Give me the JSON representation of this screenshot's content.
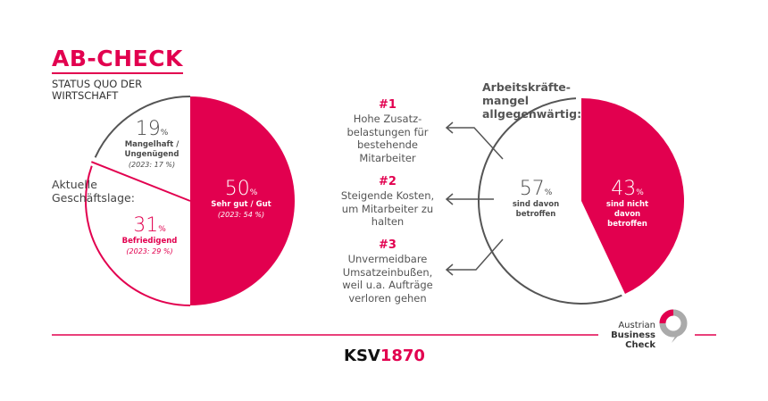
{
  "header": {
    "title": "AB-CHECK",
    "subtitle": "STATUS QUO DER WIRTSCHAFT"
  },
  "colors": {
    "accent": "#e2004f",
    "neutral": "#555555"
  },
  "chart_data": [
    {
      "type": "pie",
      "title": "Aktuelle Geschäftslage:",
      "slices": [
        {
          "label": "Sehr gut / Gut",
          "value": 50,
          "unit": "%",
          "previous": "(2023: 54 %)",
          "color": "#e2004f"
        },
        {
          "label": "Befriedigend",
          "value": 31,
          "unit": "%",
          "previous": "(2023: 29 %)",
          "color": "#ffffff"
        },
        {
          "label": "Mangelhaft / Ungenügend",
          "value": 19,
          "unit": "%",
          "previous": "(2023: 17 %)",
          "color": "#ffffff"
        }
      ]
    },
    {
      "type": "pie",
      "title": "Arbeitskräfte-mangel allgegenwärtig:",
      "slices": [
        {
          "label": "sind nicht davon betroffen",
          "value": 43,
          "unit": "%",
          "color": "#e2004f"
        },
        {
          "label": "sind davon betroffen",
          "value": 57,
          "unit": "%",
          "color": "#ffffff"
        }
      ]
    }
  ],
  "reasons": [
    {
      "rank": "#1",
      "text": "Hohe Zusatz-belastungen für bestehende Mitarbeiter"
    },
    {
      "rank": "#2",
      "text": "Steigende Kosten, um Mitarbeiter zu halten"
    },
    {
      "rank": "#3",
      "text": "Unvermeidbare Umsatzeinbußen, weil u.a. Aufträge verloren gehen"
    }
  ],
  "footer": {
    "logo_ksv": "KSV",
    "logo_ksv_num": "1870",
    "abc_line1": "Austrian",
    "abc_line2": "Business",
    "abc_line3": "Check"
  }
}
